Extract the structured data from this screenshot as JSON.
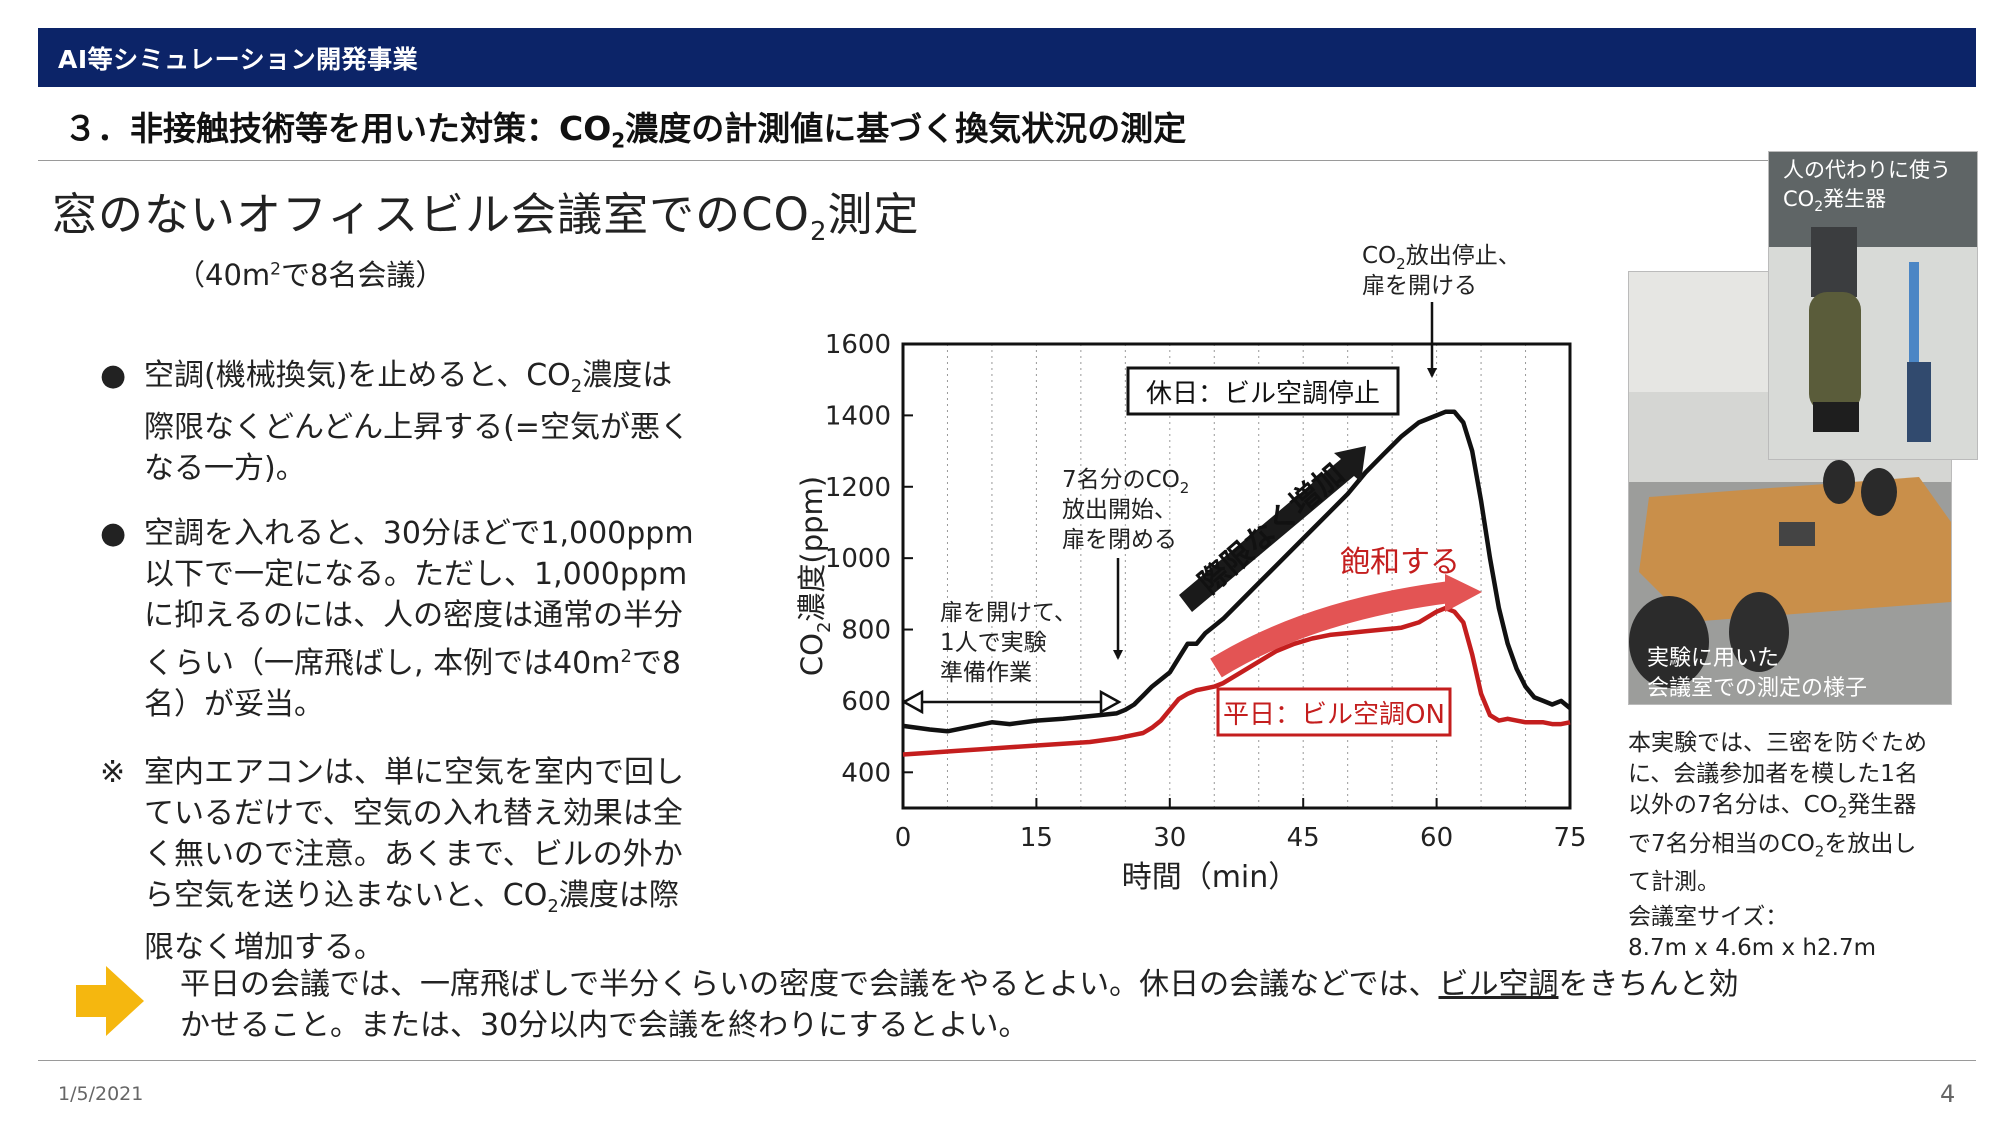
{
  "header": {
    "band_title": "AI等シミュレーション開発事業",
    "heading_prefix": "３．非接触技術等を用いた対策：CO",
    "heading_sub": "2",
    "heading_suffix": "濃度の計測値に基づく換気状況の測定"
  },
  "slide": {
    "title_prefix": "窓のないオフィスビル会議室でのCO",
    "title_sub": "2",
    "title_suffix": "測定",
    "subtitle_prefix": "（40m",
    "subtitle_sup": "2",
    "subtitle_suffix": "で8名会議）"
  },
  "bullets": [
    {
      "mark": "●",
      "l1a": "空調(機械換気)を止めると、CO",
      "l1sub": "2",
      "l1b": "濃度は",
      "l2": "際限なくどんどん上昇する(=空気が悪く",
      "l3": "なる一方)。"
    },
    {
      "mark": "●",
      "l1": "空調を入れると、30分ほどで1,000ppm",
      "l2": "以下で一定になる。ただし、1,000ppm",
      "l3": "に抑えるのには、人の密度は通常の半分",
      "l4a": "くらい（一席飛ばし, 本例では40m",
      "l4sup": "2",
      "l4b": "で8",
      "l5": "名）が妥当。"
    },
    {
      "mark": "※",
      "l1": "室内エアコンは、単に空気を室内で回し",
      "l2": "ているだけで、空気の入れ替え効果は全",
      "l3": "く無いので注意。あくまで、ビルの外か",
      "l4a": "ら空気を送り込まないと、CO",
      "l4sub": "2",
      "l4b": "濃度は際",
      "l5": "限なく増加する。"
    }
  ],
  "conclusion": {
    "line1_pre": "平日の会議では、一席飛ばしで半分くらいの密度で会議をやるとよい。休日の会議などでは、",
    "line1_underlined": "ビル空調",
    "line1_post": "をきちんと効",
    "line2": "かせること。または、30分以内で会議を終わりにするとよい。"
  },
  "chart_data": {
    "type": "line",
    "xlabel": "時間（min）",
    "ylabel_prefix": "CO",
    "ylabel_sub": "2",
    "ylabel_suffix": "濃度(ppm)",
    "xlim": [
      0,
      75
    ],
    "ylim": [
      300,
      1600
    ],
    "xticks": [
      0,
      15,
      30,
      45,
      60,
      75
    ],
    "yticks": [
      400,
      600,
      800,
      1000,
      1200,
      1400,
      1600
    ],
    "grid": "vertical dotted every 5 min",
    "series": [
      {
        "name": "休日：ビル空調停止",
        "color": "#111111",
        "x": [
          0,
          3,
          5,
          8,
          10,
          12,
          15,
          18,
          20,
          22,
          24,
          25,
          26,
          27,
          28,
          29,
          30,
          31,
          32,
          33,
          34,
          35,
          36,
          38,
          40,
          42,
          44,
          46,
          48,
          50,
          52,
          54,
          56,
          58,
          60,
          61,
          62,
          63,
          64,
          65,
          66,
          67,
          68,
          69,
          70,
          71,
          72,
          73,
          74,
          75
        ],
        "y": [
          530,
          520,
          515,
          530,
          540,
          535,
          545,
          550,
          555,
          560,
          565,
          575,
          590,
          615,
          640,
          660,
          680,
          720,
          760,
          760,
          790,
          810,
          830,
          880,
          930,
          980,
          1030,
          1080,
          1130,
          1180,
          1240,
          1290,
          1340,
          1380,
          1400,
          1410,
          1410,
          1380,
          1300,
          1160,
          1000,
          860,
          760,
          690,
          640,
          610,
          600,
          590,
          600,
          580
        ]
      },
      {
        "name": "平日：ビル空調ON",
        "color": "#c41e1e",
        "x": [
          0,
          3,
          6,
          9,
          12,
          15,
          18,
          21,
          24,
          26,
          27,
          28,
          29,
          30,
          31,
          32,
          33,
          34,
          35,
          36,
          38,
          40,
          42,
          44,
          46,
          48,
          50,
          52,
          54,
          56,
          58,
          60,
          61,
          62,
          63,
          64,
          65,
          66,
          67,
          68,
          69,
          70,
          72,
          73,
          74,
          75
        ],
        "y": [
          450,
          455,
          460,
          465,
          470,
          475,
          480,
          485,
          495,
          505,
          510,
          525,
          545,
          575,
          605,
          620,
          630,
          635,
          640,
          650,
          680,
          710,
          740,
          760,
          775,
          785,
          790,
          795,
          800,
          805,
          820,
          850,
          860,
          850,
          820,
          730,
          620,
          560,
          545,
          550,
          545,
          540,
          540,
          535,
          535,
          540
        ]
      }
    ],
    "annotations": {
      "a1": "扉を開けて、",
      "a2": "1人で実験",
      "a3": "準備作業",
      "b1a": "7名分のCO",
      "b1sub": "2",
      "b2": "放出開始、",
      "b3": "扉を閉める",
      "c1a": "CO",
      "c1sub": "2",
      "c1b": "放出停止、",
      "c2": "扉を開ける",
      "holiday_box": "休日：ビル空調停止",
      "weekday_box": "平日：ビル空調ON",
      "rising": "際限なく増加",
      "saturate": "飽和する"
    }
  },
  "photos": {
    "room_caption_l1": "実験に用いた",
    "room_caption_l2": "会議室での測定の様子",
    "gen_caption_l1": "人の代わりに使う",
    "gen_caption_l2a": "CO",
    "gen_caption_l2sub": "2",
    "gen_caption_l2b": "発生器"
  },
  "side_caption": {
    "l1": "本実験では、三密を防ぐため",
    "l2": "に、会議参加者を模した1名",
    "l3a": "以外の7名分は、CO",
    "l3sub": "2",
    "l3b": "発生器",
    "l4a": "で7名分相当のCO",
    "l4sub": "2",
    "l4b": "を放出し",
    "l5": "て計測。",
    "l6": "会議室サイズ：",
    "l7": "8.7m x 4.6m x h2.7m"
  },
  "footer": {
    "date": "1/5/2021",
    "page": "4"
  }
}
